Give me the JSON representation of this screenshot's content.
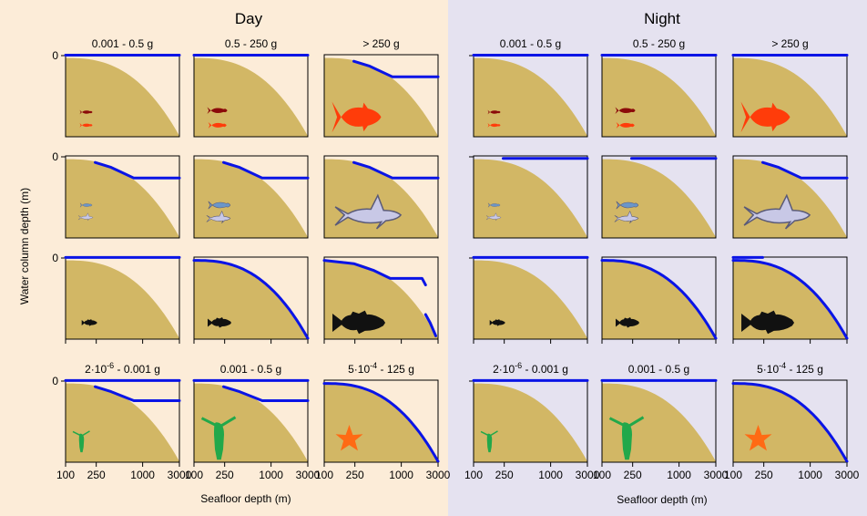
{
  "figure": {
    "day_title": "Day",
    "night_title": "Night",
    "ylabel": "Water column depth (m)",
    "xlabel": "Seafloor depth (m)",
    "y_tick_label": "0",
    "x_tick_labels": [
      "100",
      "250",
      "1000",
      "3000"
    ],
    "colors": {
      "day_background": "#fcecd8",
      "night_background": "#e5e2f0",
      "seafloor": "#d2b765",
      "line": "#0a14e6"
    }
  },
  "chart_data": {
    "type": "line",
    "title": "",
    "x_axis": {
      "label": "Seafloor depth (m)",
      "scale": "log",
      "range": [
        100,
        3000
      ],
      "ticks": [
        100,
        250,
        1000,
        3000
      ]
    },
    "y_axis": {
      "label": "Water column depth (m)",
      "ticks": [
        0
      ]
    },
    "grid": false,
    "rows": [
      {
        "group": "pelagic fish",
        "icon": "fish-icon",
        "colors": [
          "#8b0a0a",
          "#ff3c0a"
        ],
        "size_classes": [
          "0.001 - 0.5 g",
          "0.5 - 250 g",
          "> 250 g"
        ]
      },
      {
        "group": "sharks",
        "icon": "shark-icon",
        "colors": [
          "#6b96c8",
          "#c8c8e6"
        ],
        "size_classes": [
          "0.001 - 0.5 g",
          "0.5 - 250 g",
          "> 250 g"
        ]
      },
      {
        "group": "demersal fish",
        "icon": "demersal-fish-icon",
        "colors": [
          "#111111"
        ],
        "size_classes": [
          "0.001 - 0.5 g",
          "0.5 - 250 g",
          "> 250 g"
        ]
      },
      {
        "group": "benthos",
        "icon": "benthos-icon",
        "colors": [
          "#22a84a",
          "#ff6a14"
        ],
        "size_classes": [
          "2·10^-6 - 0.001 g",
          "0.001 - 0.5 g",
          "5·10^-4 - 125 g"
        ]
      }
    ],
    "panels": {
      "day": [
        [
          {
            "line": "surface"
          },
          {
            "line": "surface"
          },
          {
            "line": "shelf-break"
          }
        ],
        [
          {
            "line": "shelf-break"
          },
          {
            "line": "shelf-break"
          },
          {
            "line": "shelf-break"
          }
        ],
        [
          {
            "line": "surface"
          },
          {
            "line": "bottom"
          },
          {
            "line": "split"
          }
        ],
        [
          {
            "line": "surface+shelf-break"
          },
          {
            "line": "surface+shelf-break"
          },
          {
            "line": "bottom"
          }
        ]
      ],
      "night": [
        [
          {
            "line": "surface"
          },
          {
            "line": "surface"
          },
          {
            "line": "surface"
          }
        ],
        [
          {
            "line": "surface-offshore"
          },
          {
            "line": "surface-offshore"
          },
          {
            "line": "shelf-break"
          }
        ],
        [
          {
            "line": "surface"
          },
          {
            "line": "bottom"
          },
          {
            "line": "bottom+surface-shelf"
          }
        ],
        [
          {
            "line": "surface"
          },
          {
            "line": "surface"
          },
          {
            "line": "bottom"
          }
        ]
      ]
    }
  }
}
